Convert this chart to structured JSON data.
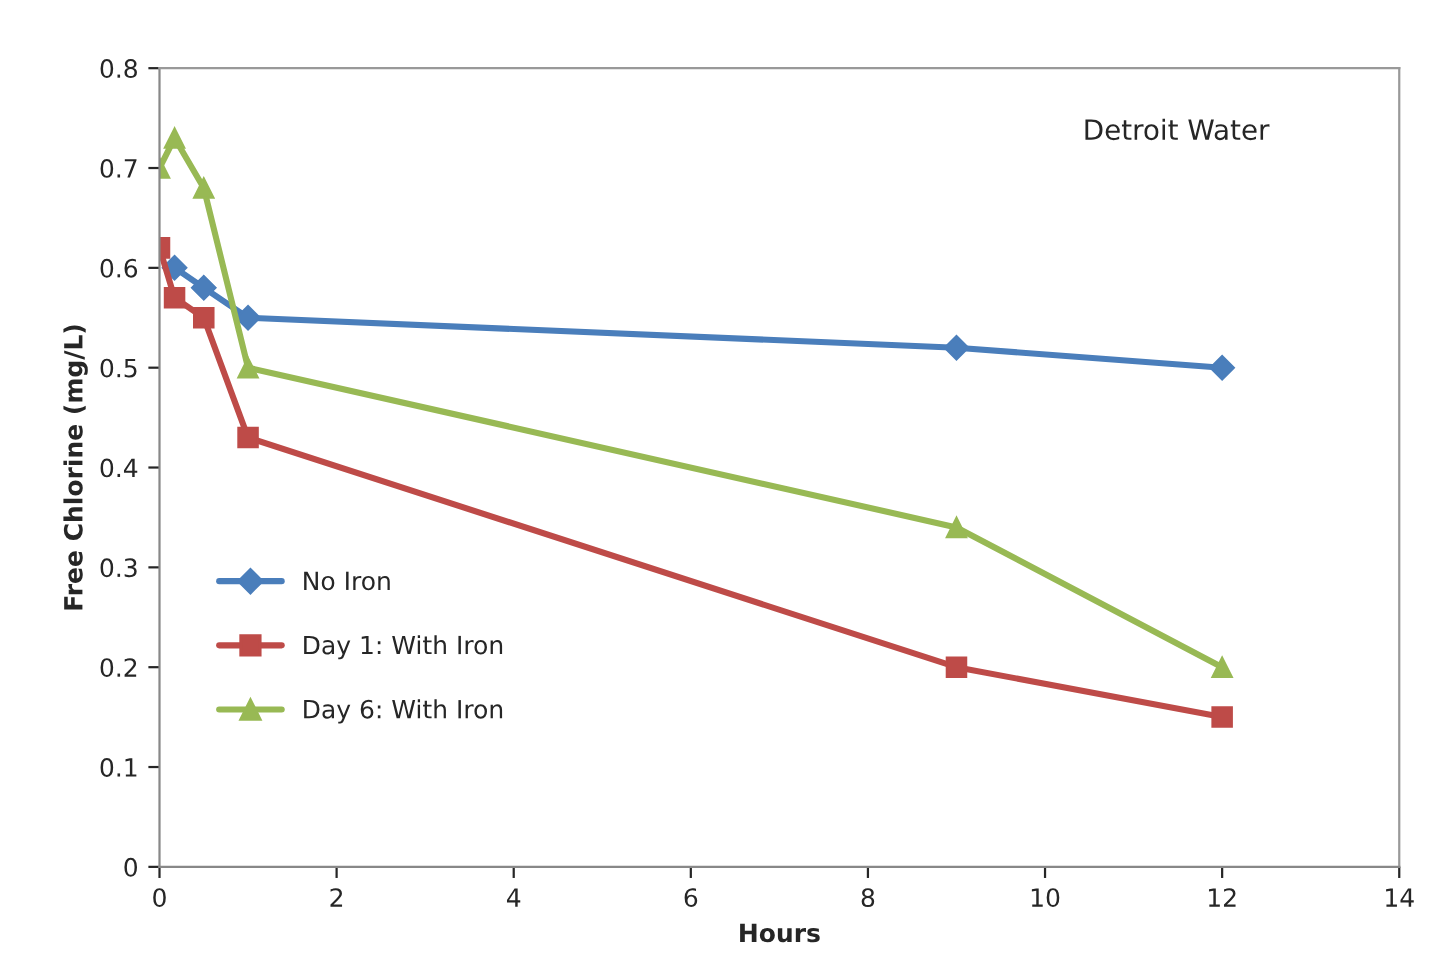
{
  "chart_data": {
    "type": "line",
    "xlabel": "Hours",
    "ylabel": "Free Chlorine (mg/L)",
    "x": [
      0,
      0.17,
      0.5,
      1,
      9,
      12
    ],
    "series": [
      {
        "name": "No Iron",
        "color": "#4a7ebb",
        "marker": "diamond",
        "values": [
          null,
          0.6,
          0.58,
          0.55,
          0.52,
          0.5
        ]
      },
      {
        "name": "Day 1: With Iron",
        "color": "#be4b48",
        "marker": "square",
        "values": [
          0.62,
          0.57,
          0.55,
          0.43,
          0.2,
          0.15
        ]
      },
      {
        "name": "Day 6: With Iron",
        "color": "#98b954",
        "marker": "triangle",
        "values": [
          0.7,
          0.73,
          0.68,
          0.5,
          0.34,
          0.2
        ]
      }
    ],
    "annotations": [
      "Detroit Water"
    ],
    "xlim": [
      0,
      14
    ],
    "xticks": [
      0,
      2,
      4,
      6,
      8,
      10,
      12,
      14
    ],
    "ylim": [
      0,
      0.8
    ],
    "yticks": [
      0,
      0.1,
      0.2,
      0.3,
      0.4,
      0.5,
      0.6,
      0.7,
      0.8
    ],
    "grid": false,
    "legend": "center left",
    "line_style": "solid"
  }
}
